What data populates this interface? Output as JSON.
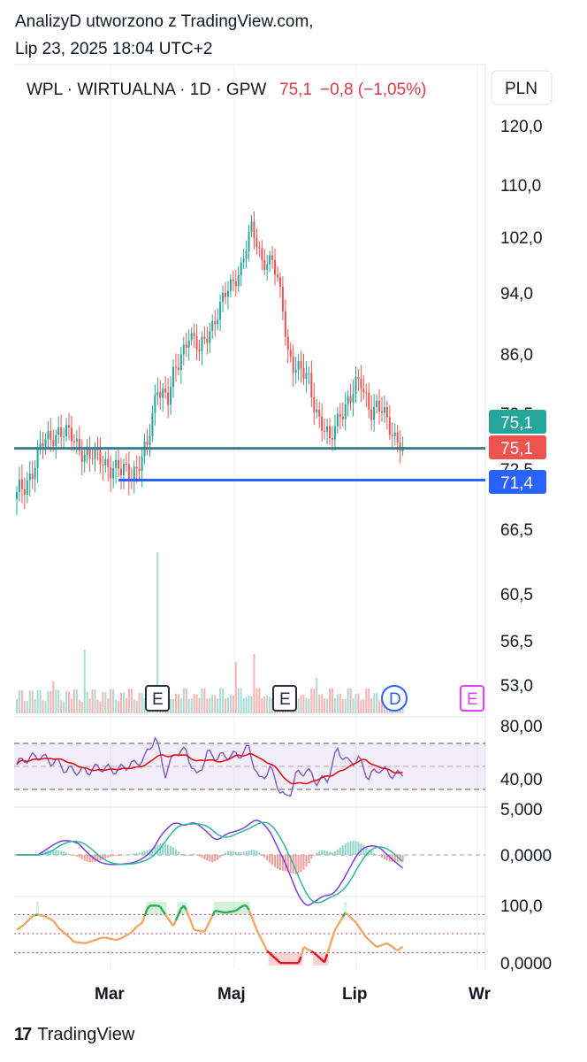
{
  "header": {
    "line1": "AnalizyD utworzono z TradingView.com,",
    "line2": "Lip 23, 2025 18:04 UTC+2"
  },
  "legend": {
    "symbol": "WPL · WIRTUALNA · 1D · GPW",
    "last": "75,1",
    "change": "−0,8 (−1,05%)",
    "currency": "PLN"
  },
  "footer": {
    "brand": "TradingView"
  },
  "colors": {
    "up": "#26a69a",
    "down": "#ef5350",
    "text": "#131722",
    "support_blue": "#2962ff",
    "teal_line": "#3b7f8a",
    "rsi_line": "#7e57c2",
    "rsi_ma": "#e0111b",
    "macd": "#7e3fd6",
    "signal": "#2ab8a0",
    "stoch_up": "#22b14c",
    "stoch_mid": "#f2a661",
    "stoch_down": "#e0111b"
  },
  "chart_data": {
    "type": "candlestick",
    "x_labels": [
      "Mar",
      "Maj",
      "Lip",
      "Wr"
    ],
    "price_axis": [
      "120,0",
      "110,0",
      "102,0",
      "94,0",
      "86,0",
      "79,5",
      "72,5",
      "66,5",
      "60,5",
      "56,5",
      "53,0"
    ],
    "price_keypoints": [
      [
        0,
        69.5
      ],
      [
        5,
        72.0
      ],
      [
        10,
        75.5
      ],
      [
        16,
        77.5
      ],
      [
        22,
        76.0
      ],
      [
        28,
        74.0
      ],
      [
        34,
        73.5
      ],
      [
        40,
        72.0
      ],
      [
        46,
        72.8
      ],
      [
        50,
        75.0
      ],
      [
        54,
        83.0
      ],
      [
        58,
        81.0
      ],
      [
        62,
        85.0
      ],
      [
        66,
        89.0
      ],
      [
        70,
        86.0
      ],
      [
        74,
        89.5
      ],
      [
        78,
        92.0
      ],
      [
        82,
        95.0
      ],
      [
        86,
        98.0
      ],
      [
        90,
        103.0
      ],
      [
        94,
        99.0
      ],
      [
        98,
        98.5
      ],
      [
        102,
        92.0
      ],
      [
        104,
        86.5
      ],
      [
        108,
        84.0
      ],
      [
        112,
        83.0
      ],
      [
        116,
        79.0
      ],
      [
        120,
        75.5
      ],
      [
        124,
        80.0
      ],
      [
        128,
        81.0
      ],
      [
        132,
        83.0
      ],
      [
        136,
        80.0
      ],
      [
        140,
        79.5
      ],
      [
        144,
        77.5
      ],
      [
        148,
        75.1
      ]
    ],
    "last_price": 75.1,
    "support_level": 71.4,
    "price_labels": [
      {
        "text": "75,1",
        "price": 75.1,
        "color": "#26a69a"
      },
      {
        "text": "75,1",
        "price": 75.1,
        "color": "#ef5350"
      },
      {
        "text": "71,4",
        "price": 71.4,
        "color": "#2962ff"
      }
    ],
    "events": [
      {
        "label": "E",
        "x_label": "mid-Mar",
        "style": "earnings"
      },
      {
        "label": "E",
        "x_label": "mid-May",
        "style": "earnings"
      },
      {
        "label": "D",
        "x_label": "early-Jul",
        "style": "dividend"
      },
      {
        "label": "E",
        "x_label": "Aug",
        "style": "earnings-future"
      }
    ],
    "indicators": [
      {
        "name": "RSI",
        "axis": [
          "80,00",
          "40,00"
        ],
        "upper": 70,
        "middle": 50,
        "lower": 30
      },
      {
        "name": "MACD",
        "axis": [
          "5,000",
          "0,0000"
        ]
      },
      {
        "name": "Stoch",
        "axis": [
          "100,0",
          "0,0000"
        ],
        "upper": 80,
        "lower": 20
      }
    ]
  }
}
